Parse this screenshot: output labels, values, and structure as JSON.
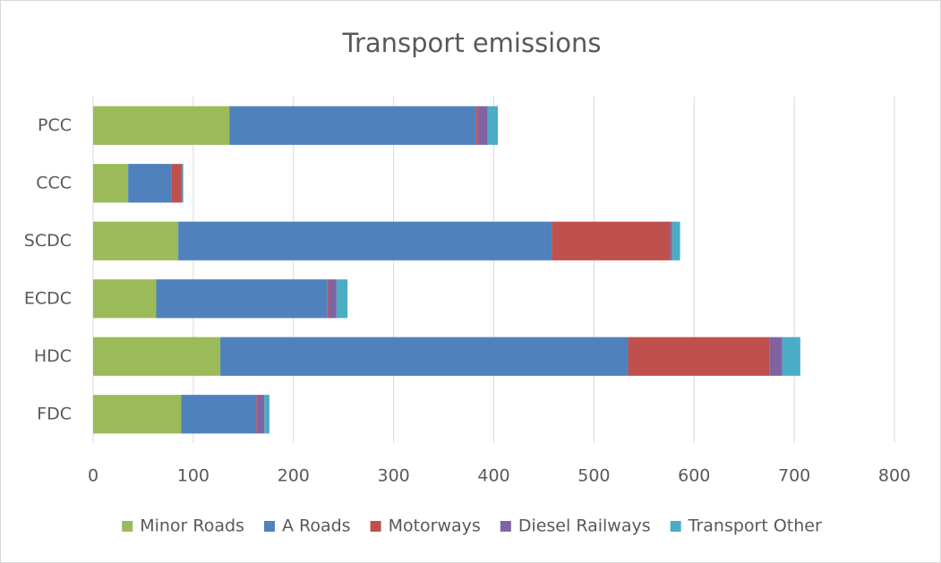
{
  "chart_data": {
    "type": "bar",
    "orientation": "horizontal",
    "stacked": true,
    "title": "Transport emissions",
    "categories": [
      "PCC",
      "CCC",
      "SCDC",
      "ECDC",
      "HDC",
      "FDC"
    ],
    "series": [
      {
        "name": "Minor Roads",
        "color": "#9bbb59",
        "values": [
          136,
          35,
          85,
          63,
          127,
          88
        ]
      },
      {
        "name": "A Roads",
        "color": "#4f81bd",
        "values": [
          246,
          43,
          373,
          171,
          407,
          75
        ]
      },
      {
        "name": "Motorways",
        "color": "#c0504d",
        "values": [
          2,
          10,
          118,
          1,
          141,
          1
        ]
      },
      {
        "name": "Diesel Railways",
        "color": "#8064a2",
        "values": [
          10,
          1,
          2,
          8,
          13,
          7
        ]
      },
      {
        "name": "Transport Other",
        "color": "#4bacc6",
        "values": [
          10,
          1,
          8,
          11,
          18,
          5
        ]
      }
    ],
    "xlim": [
      0,
      800
    ],
    "xticks": [
      0,
      100,
      200,
      300,
      400,
      500,
      600,
      700,
      800
    ],
    "grid": true,
    "legend": "bottom"
  }
}
